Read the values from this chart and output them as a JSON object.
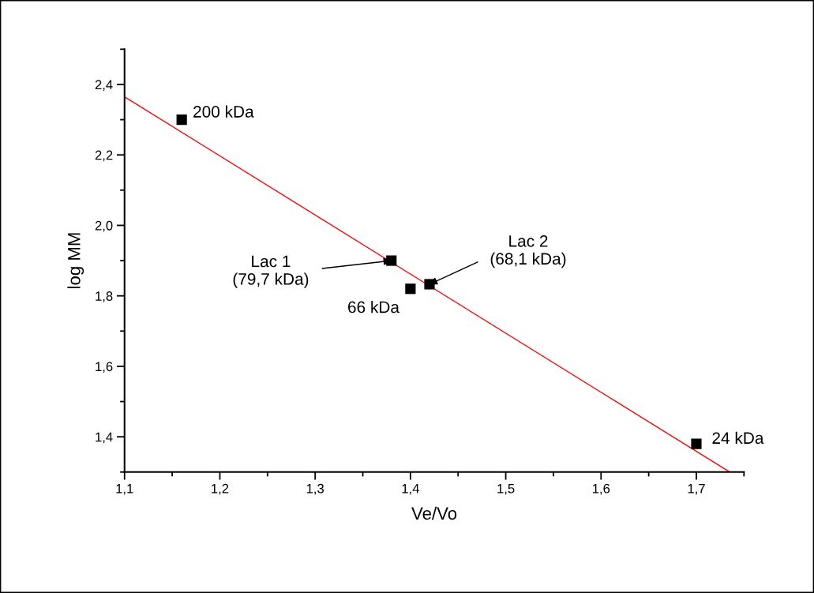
{
  "chart_data": {
    "type": "scatter",
    "xlabel": "Ve/Vo",
    "ylabel": "log MM",
    "series": [
      {
        "marker": "square",
        "color": "#000000",
        "x": [
          1.16,
          1.38,
          1.4,
          1.42,
          1.7
        ],
        "values": [
          2.3,
          1.9,
          1.82,
          1.833,
          1.38
        ]
      },
      {
        "type": "line",
        "marker": "none",
        "color": "#ff0000",
        "x": [
          1.1,
          1.735
        ],
        "values": [
          2.365,
          1.3
        ]
      }
    ],
    "annotations": [
      {
        "text": "200 kDa",
        "x": 1.16,
        "y": 2.3
      },
      {
        "text": "Lac 1\n(79,7 kDa)",
        "x": 1.38,
        "y": 1.9
      },
      {
        "text": "66 kDa",
        "x": 1.4,
        "y": 1.82
      },
      {
        "text": "Lac 2\n(68,1 kDa)",
        "x": 1.42,
        "y": 1.833
      },
      {
        "text": "24 kDa",
        "x": 1.7,
        "y": 1.38
      }
    ],
    "xlim": [
      1.1,
      1.75
    ],
    "ylim": [
      1.3,
      2.5
    ],
    "xticks": [
      {
        "value": 1.1,
        "label": "1,1"
      },
      {
        "value": 1.2,
        "label": "1,2"
      },
      {
        "value": 1.3,
        "label": "1,3"
      },
      {
        "value": 1.4,
        "label": "1,4"
      },
      {
        "value": 1.5,
        "label": "1,5"
      },
      {
        "value": 1.6,
        "label": "1,6"
      },
      {
        "value": 1.7,
        "label": "1,7"
      }
    ],
    "yticks": [
      {
        "value": 1.4,
        "label": "1,4"
      },
      {
        "value": 1.6,
        "label": "1,6"
      },
      {
        "value": 1.8,
        "label": "1,8"
      },
      {
        "value": 2.0,
        "label": "2,0"
      },
      {
        "value": 2.2,
        "label": "2,2"
      },
      {
        "value": 2.4,
        "label": "2,4"
      }
    ]
  }
}
